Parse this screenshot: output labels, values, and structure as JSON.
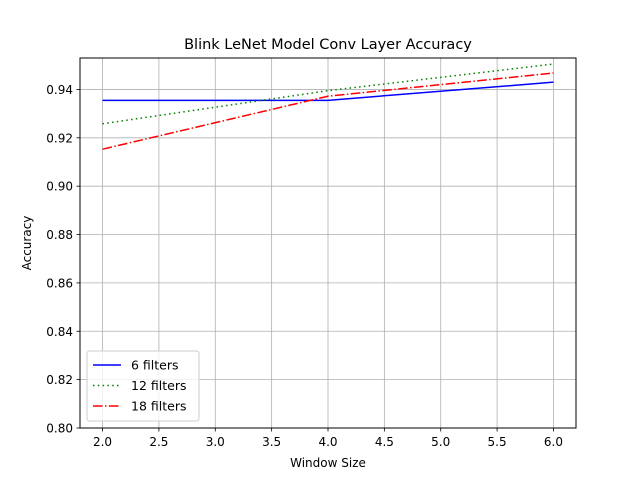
{
  "chart_data": {
    "type": "line",
    "title": "Blink LeNet Model Conv Layer Accuracy",
    "xlabel": "Window Size",
    "ylabel": "Accuracy",
    "xlim": [
      1.8,
      6.2
    ],
    "ylim": [
      0.8,
      0.953
    ],
    "xticks": [
      2.0,
      2.5,
      3.0,
      3.5,
      4.0,
      4.5,
      5.0,
      5.5,
      6.0
    ],
    "xtick_labels": [
      "2.0",
      "2.5",
      "3.0",
      "3.5",
      "4.0",
      "4.5",
      "5.0",
      "5.5",
      "6.0"
    ],
    "yticks": [
      0.8,
      0.82,
      0.84,
      0.86,
      0.88,
      0.9,
      0.92,
      0.94
    ],
    "ytick_labels": [
      "0.80",
      "0.82",
      "0.84",
      "0.86",
      "0.88",
      "0.90",
      "0.92",
      "0.94"
    ],
    "grid": true,
    "legend_position": "lower-left",
    "x": [
      2,
      4,
      6
    ],
    "series": [
      {
        "name": "6 filters",
        "values": [
          0.9355,
          0.9355,
          0.943
        ],
        "color": "#0000ff",
        "style": "solid"
      },
      {
        "name": "12 filters",
        "values": [
          0.9258,
          0.9395,
          0.9505
        ],
        "color": "#008000",
        "style": "dotted"
      },
      {
        "name": "18 filters",
        "values": [
          0.9153,
          0.9372,
          0.9468
        ],
        "color": "#ff0000",
        "style": "dashdot"
      }
    ]
  }
}
